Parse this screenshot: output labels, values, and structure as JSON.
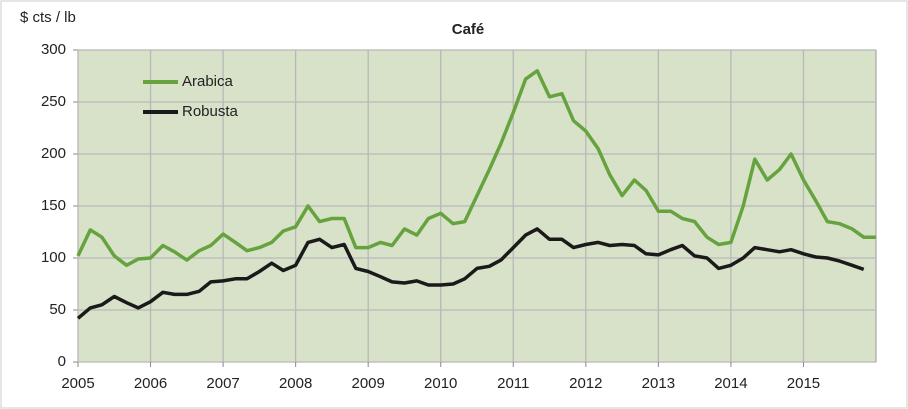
{
  "chart_data": {
    "type": "line",
    "title": "Café",
    "y_label": "$ cts / lb",
    "x": [
      2005,
      2005.17,
      2005.33,
      2005.5,
      2005.67,
      2005.83,
      2006,
      2006.17,
      2006.33,
      2006.5,
      2006.67,
      2006.83,
      2007,
      2007.17,
      2007.33,
      2007.5,
      2007.67,
      2007.83,
      2008,
      2008.17,
      2008.33,
      2008.5,
      2008.67,
      2008.83,
      2009,
      2009.17,
      2009.33,
      2009.5,
      2009.67,
      2009.83,
      2010,
      2010.17,
      2010.33,
      2010.5,
      2010.67,
      2010.83,
      2011,
      2011.17,
      2011.33,
      2011.5,
      2011.67,
      2011.83,
      2012,
      2012.17,
      2012.33,
      2012.5,
      2012.67,
      2012.83,
      2013,
      2013.17,
      2013.33,
      2013.5,
      2013.67,
      2013.83,
      2014,
      2014.17,
      2014.33,
      2014.5,
      2014.67,
      2014.83,
      2015,
      2015.17,
      2015.33,
      2015.5,
      2015.67,
      2015.83,
      2016
    ],
    "series": [
      {
        "name": "Arabica",
        "color": "#66a33f",
        "values": [
          102,
          127,
          120,
          102,
          93,
          99,
          100,
          112,
          106,
          98,
          107,
          112,
          123,
          115,
          107,
          110,
          115,
          126,
          130,
          150,
          135,
          138,
          138,
          110,
          110,
          115,
          112,
          128,
          122,
          138,
          143,
          133,
          135,
          160,
          185,
          210,
          240,
          272,
          280,
          255,
          258,
          232,
          222,
          205,
          180,
          160,
          175,
          165,
          145,
          145,
          138,
          135,
          120,
          113,
          115,
          150,
          195,
          175,
          185,
          200,
          175,
          155,
          135,
          133,
          128,
          120,
          120
        ]
      },
      {
        "name": "Robusta",
        "color": "#1a1a1a",
        "values": [
          42,
          52,
          55,
          63,
          57,
          52,
          58,
          67,
          65,
          65,
          68,
          77,
          78,
          80,
          80,
          87,
          95,
          88,
          93,
          115,
          118,
          110,
          113,
          90,
          87,
          82,
          77,
          76,
          78,
          74,
          74,
          75,
          80,
          90,
          92,
          98,
          110,
          122,
          128,
          118,
          118,
          110,
          113,
          115,
          112,
          113,
          112,
          104,
          103,
          108,
          112,
          102,
          100,
          90,
          93,
          100,
          110,
          108,
          106,
          108,
          104,
          101,
          100,
          97,
          93,
          89,
          null
        ]
      }
    ],
    "xlim": [
      2005,
      2016
    ],
    "xticks": [
      2005,
      2006,
      2007,
      2008,
      2009,
      2010,
      2011,
      2012,
      2013,
      2014,
      2015
    ],
    "ylim": [
      0,
      300
    ],
    "yticks": [
      0,
      50,
      100,
      150,
      200,
      250,
      300
    ],
    "grid": true,
    "legend": "upper left"
  }
}
